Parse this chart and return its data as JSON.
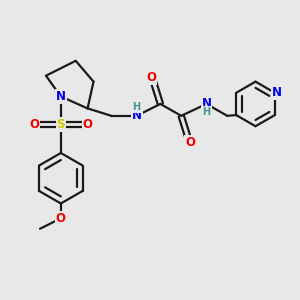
{
  "bg_color": "#e8e8e8",
  "bond_color": "#1a1a1a",
  "bond_width": 1.6,
  "atom_colors": {
    "N": "#0000ee",
    "O": "#ee0000",
    "S": "#cccc00",
    "H": "#4a9090",
    "C": "#1a1a1a"
  },
  "font_size_atom": 8.5,
  "font_size_small": 7.0
}
